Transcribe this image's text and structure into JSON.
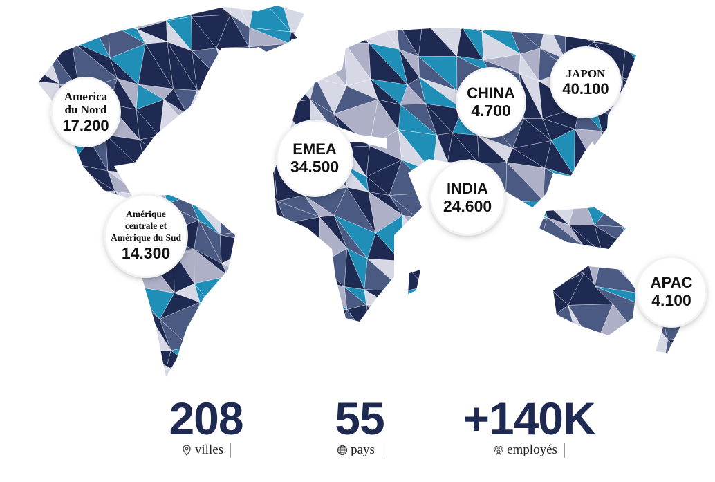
{
  "regions": [
    {
      "id": "north-america",
      "name": "America du Nord",
      "name_lines": [
        "America",
        "du Nord"
      ],
      "value": "17.200"
    },
    {
      "id": "latam",
      "name": "Amérique centrale et Amérique du Sud",
      "name_lines": [
        "Amérique",
        "centrale et",
        "Amérique du Sud"
      ],
      "value": "14.300"
    },
    {
      "id": "emea",
      "name": "EMEA",
      "name_lines": [
        "EMEA"
      ],
      "value": "34.500"
    },
    {
      "id": "china",
      "name": "CHINA",
      "name_lines": [
        "CHINA"
      ],
      "value": "4.700"
    },
    {
      "id": "japan",
      "name": "JAPON",
      "name_lines": [
        "JAPON"
      ],
      "value": "40.100"
    },
    {
      "id": "india",
      "name": "INDIA",
      "name_lines": [
        "INDIA"
      ],
      "value": "24.600"
    },
    {
      "id": "apac",
      "name": "APAC",
      "name_lines": [
        "APAC"
      ],
      "value": "4.100"
    }
  ],
  "stats": {
    "cities": {
      "value": "208",
      "label": "villes",
      "icon": "location-pin-icon"
    },
    "countries": {
      "value": "55",
      "label": "pays",
      "icon": "globe-icon"
    },
    "employees": {
      "value": "+140K",
      "label": "employés",
      "icon": "people-icon"
    }
  },
  "colors": {
    "navy": "#1f2a52",
    "slate": "#4a5a82",
    "lavender": "#aeb0c8",
    "pale": "#d6d8e6",
    "teal": "#1f8fb8"
  }
}
